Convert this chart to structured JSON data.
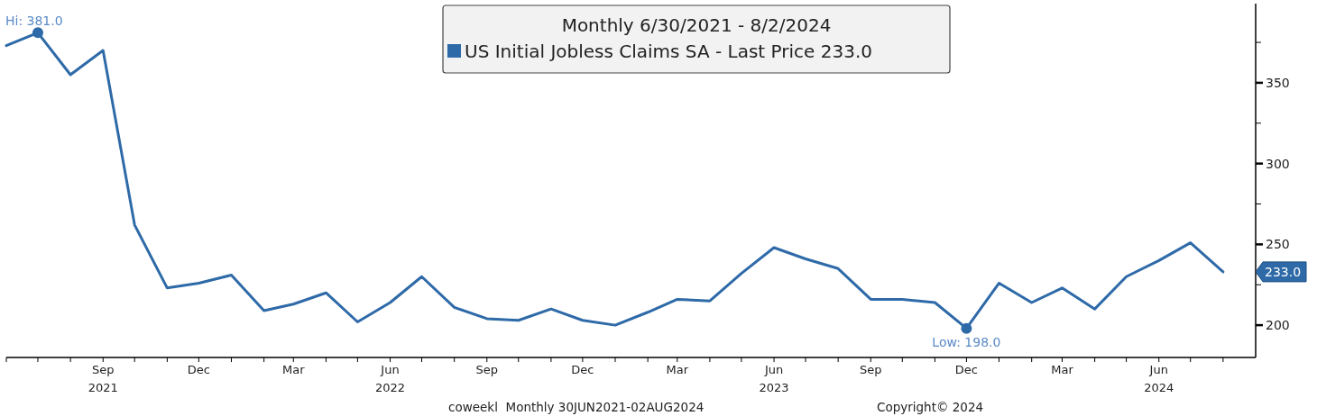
{
  "chart_data": {
    "type": "line",
    "legend_title": "Monthly 6/30/2021 - 8/2/2024",
    "x": [
      "2021-06",
      "2021-07",
      "2021-08",
      "2021-09",
      "2021-10",
      "2021-11",
      "2021-12",
      "2022-01",
      "2022-02",
      "2022-03",
      "2022-04",
      "2022-05",
      "2022-06",
      "2022-07",
      "2022-08",
      "2022-09",
      "2022-10",
      "2022-11",
      "2022-12",
      "2023-01",
      "2023-02",
      "2023-03",
      "2023-04",
      "2023-05",
      "2023-06",
      "2023-07",
      "2023-08",
      "2023-09",
      "2023-10",
      "2023-11",
      "2023-12",
      "2024-01",
      "2024-02",
      "2024-03",
      "2024-04",
      "2024-05",
      "2024-06",
      "2024-07",
      "2024-08"
    ],
    "series": [
      {
        "name": "US Initial Jobless Claims SA - Last Price 233.0",
        "color": "#2e6aa8",
        "values": [
          373,
          381,
          355,
          370,
          262,
          223,
          226,
          231,
          209,
          213,
          220,
          202,
          214,
          230,
          211,
          204,
          203,
          210,
          203,
          200,
          208,
          216,
          215,
          232,
          248,
          241,
          235,
          216,
          216,
          214,
          198,
          226,
          214,
          223,
          210,
          230,
          240,
          251,
          233
        ]
      }
    ],
    "xlim": [
      "2021-06",
      "2024-09"
    ],
    "xticks": [
      {
        "value": "2021-06",
        "label": null
      },
      {
        "value": "2021-07",
        "label": null
      },
      {
        "value": "2021-08",
        "label": null
      },
      {
        "value": "2021-09",
        "label": "Sep\n2021"
      },
      {
        "value": "2021-10",
        "label": null
      },
      {
        "value": "2021-11",
        "label": null
      },
      {
        "value": "2021-12",
        "label": "Dec"
      },
      {
        "value": "2022-01",
        "label": null
      },
      {
        "value": "2022-02",
        "label": null
      },
      {
        "value": "2022-03",
        "label": "Mar"
      },
      {
        "value": "2022-04",
        "label": null
      },
      {
        "value": "2022-05",
        "label": null
      },
      {
        "value": "2022-06",
        "label": "Jun\n2022"
      },
      {
        "value": "2022-07",
        "label": null
      },
      {
        "value": "2022-08",
        "label": null
      },
      {
        "value": "2022-09",
        "label": "Sep"
      },
      {
        "value": "2022-10",
        "label": null
      },
      {
        "value": "2022-11",
        "label": null
      },
      {
        "value": "2022-12",
        "label": "Dec"
      },
      {
        "value": "2023-01",
        "label": null
      },
      {
        "value": "2023-02",
        "label": null
      },
      {
        "value": "2023-03",
        "label": "Mar"
      },
      {
        "value": "2023-04",
        "label": null
      },
      {
        "value": "2023-05",
        "label": null
      },
      {
        "value": "2023-06",
        "label": "Jun\n2023"
      },
      {
        "value": "2023-07",
        "label": null
      },
      {
        "value": "2023-08",
        "label": null
      },
      {
        "value": "2023-09",
        "label": "Sep"
      },
      {
        "value": "2023-10",
        "label": null
      },
      {
        "value": "2023-11",
        "label": null
      },
      {
        "value": "2023-12",
        "label": "Dec"
      },
      {
        "value": "2024-01",
        "label": null
      },
      {
        "value": "2024-02",
        "label": null
      },
      {
        "value": "2024-03",
        "label": "Mar"
      },
      {
        "value": "2024-04",
        "label": null
      },
      {
        "value": "2024-05",
        "label": null
      },
      {
        "value": "2024-06",
        "label": "Jun\n2024"
      },
      {
        "value": "2024-07",
        "label": null
      },
      {
        "value": "2024-08",
        "label": null
      }
    ],
    "ylim": [
      180,
      399
    ],
    "yticks": [
      200,
      {
        "value": 225,
        "label": null
      },
      250,
      {
        "value": 275,
        "label": null
      },
      300,
      {
        "value": 325,
        "label": null
      },
      350,
      {
        "value": 375,
        "label": null
      }
    ],
    "annotations": [
      {
        "text": "Hi: 381.0",
        "x": "2021-07",
        "y": 381
      },
      {
        "text": "Low: 198.0",
        "x": "2023-12",
        "y": 198
      },
      "233.0",
      "coweekl  Monthly 30JUN2021-02AUG2024",
      "Copyright© 2024"
    ],
    "legend": "top",
    "grid": false,
    "marker": "none",
    "line_style": "solid"
  }
}
